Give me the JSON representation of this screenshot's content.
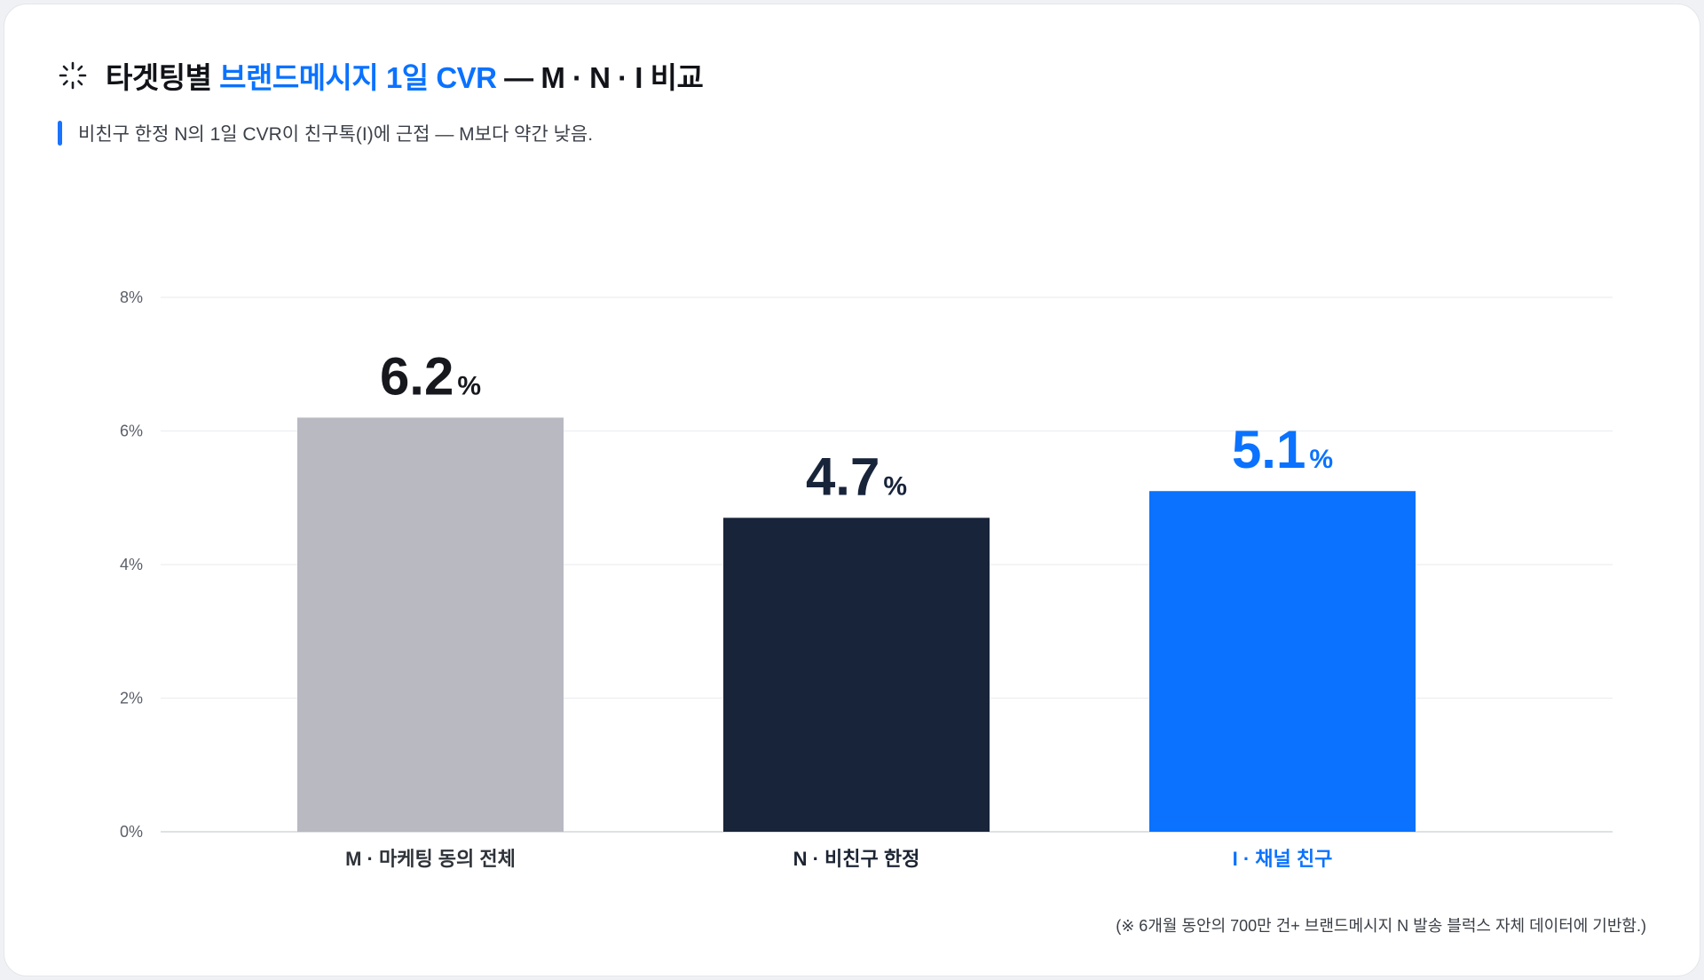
{
  "header": {
    "title_prefix": "타겟팅별 ",
    "title_accent": "브랜드메시지 1일 CVR",
    "title_suffix": " — M · N · I 비교",
    "subtitle": "비친구 한정 N의 1일 CVR이 친구톡(I)에 근접 — M보다 약간 낮음."
  },
  "footnote": "(※ 6개월 동안의 700만 건+ 브랜드메시지 N 발송 블럭스 자체 데이터에 기반함.)",
  "chart_data": {
    "type": "bar",
    "title": "타겟팅별 브랜드메시지 1일 CVR — M · N · I 비교",
    "categories": [
      "M · 마케팅 동의 전체",
      "N · 비친구 한정",
      "I · 채널 친구"
    ],
    "values": [
      6.2,
      4.7,
      5.1
    ],
    "value_labels": [
      "6.2",
      "4.7",
      "5.1"
    ],
    "value_unit": "%",
    "ylim": [
      0,
      8
    ],
    "yticks": [
      0,
      2,
      4,
      6,
      8
    ],
    "ytick_labels": [
      "0%",
      "2%",
      "4%",
      "6%",
      "8%"
    ],
    "grid": true,
    "colors": [
      "#b8b9c1",
      "#18243a",
      "#0a72ff"
    ],
    "label_colors": [
      "#16181d",
      "#18243a",
      "#0a72ff"
    ],
    "category_label_colors": [
      "#2f333a",
      "#1c2433",
      "#0a72ff"
    ]
  }
}
